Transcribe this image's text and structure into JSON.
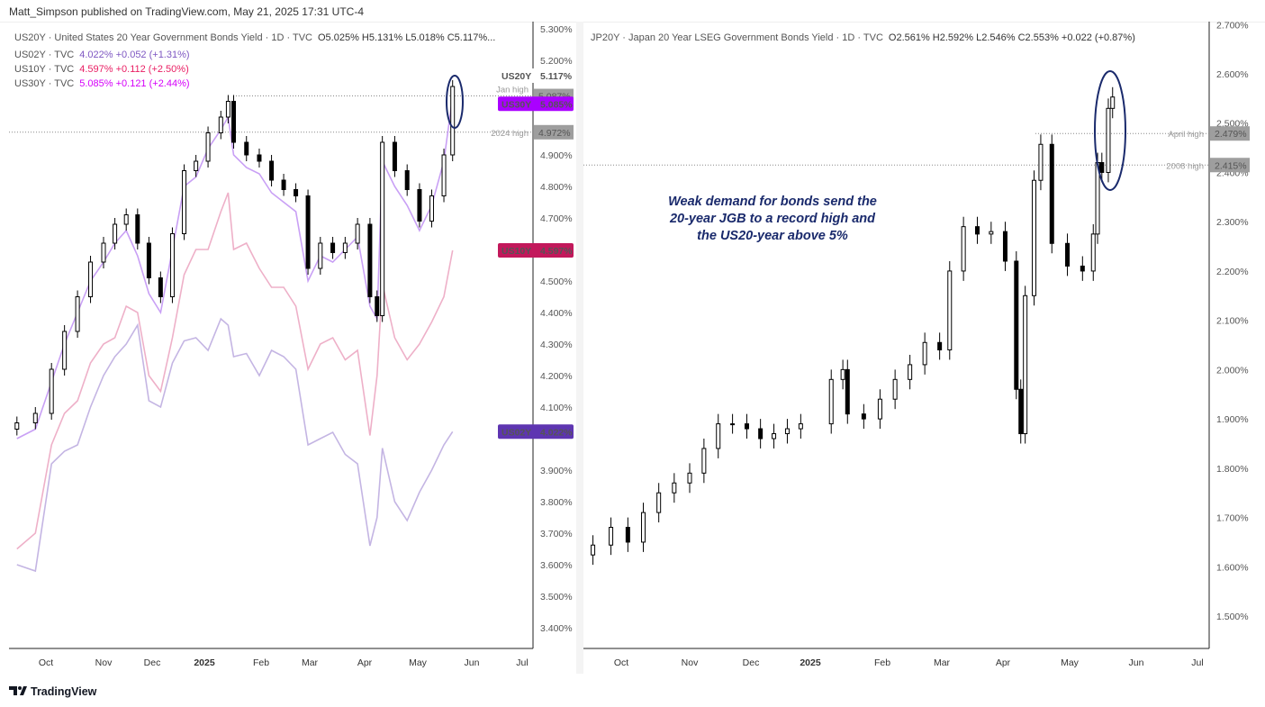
{
  "header": {
    "published": "Matt_Simpson published on TradingView.com, May 21, 2025 17:31 UTC-4"
  },
  "footer": {
    "logo_text": "TradingView"
  },
  "colors": {
    "us20y": "#000000",
    "us02y": "#5e35b1",
    "us10y": "#c2185b",
    "us30y": "#aa00ff",
    "annotation": "#1a2a6c"
  },
  "left_legend": {
    "main": "US20Y · United States 20 Year Government Bonds Yield · 1D · TVC",
    "ohlc": "O5.025%  H5.131%  L5.018%  C5.117%...",
    "rows": [
      {
        "label": "US02Y · TVC",
        "value": "4.022%  +0.052 (+1.31%)",
        "color": "#7e57c2"
      },
      {
        "label": "US10Y · TVC",
        "value": "4.597%  +0.112 (+2.50%)",
        "color": "#e91e63"
      },
      {
        "label": "US30Y · TVC",
        "value": "5.085%  +0.121 (+2.44%)",
        "color": "#d500f9"
      }
    ]
  },
  "right_legend": {
    "main": "JP20Y · Japan 20 Year LSEG Government Bonds Yield · 1D · TVC",
    "ohlc": "O2.561%  H2.592%  L2.546%  C2.553%  +0.022 (+0.87%)"
  },
  "annotation_text": [
    "Weak demand for bonds send the",
    "20-year JGB to a record high and",
    "the US20-year above 5%"
  ],
  "chart_data": [
    {
      "type": "candlestick+line",
      "title": "US20Y · United States 20 Year Government Bonds Yield · 1D · TVC",
      "ylim": [
        3.33,
        5.33
      ],
      "yticks": [
        "5.300%",
        "5.200%",
        "4.900%",
        "4.800%",
        "4.700%",
        "4.500%",
        "4.400%",
        "4.300%",
        "4.200%",
        "4.100%",
        "3.900%",
        "3.800%",
        "3.700%",
        "3.600%",
        "3.500%",
        "3.400%"
      ],
      "ytick_values": [
        5.3,
        5.2,
        4.9,
        4.8,
        4.7,
        4.5,
        4.4,
        4.3,
        4.2,
        4.1,
        3.9,
        3.8,
        3.7,
        3.6,
        3.5,
        3.4
      ],
      "xticks": [
        "Oct",
        "Nov",
        "Dec",
        "2025",
        "Feb",
        "Mar",
        "Apr",
        "May",
        "Jun",
        "Jul"
      ],
      "dates": [
        "2024-09-20",
        "2024-09-27",
        "2024-10-04",
        "2024-10-11",
        "2024-10-18",
        "2024-10-25",
        "2024-11-01",
        "2024-11-08",
        "2024-11-15",
        "2024-11-22",
        "2024-11-29",
        "2024-12-06",
        "2024-12-13",
        "2024-12-20",
        "2024-12-27",
        "2025-01-03",
        "2025-01-10",
        "2025-01-14",
        "2025-01-17",
        "2025-01-24",
        "2025-01-31",
        "2025-02-07",
        "2025-02-14",
        "2025-02-21",
        "2025-02-28",
        "2025-03-07",
        "2025-03-14",
        "2025-03-21",
        "2025-03-28",
        "2025-04-04",
        "2025-04-08",
        "2025-04-11",
        "2025-04-18",
        "2025-04-25",
        "2025-05-02",
        "2025-05-09",
        "2025-05-16",
        "2025-05-21"
      ],
      "series": [
        {
          "name": "US20Y",
          "style": "candles",
          "values": [
            4.05,
            4.08,
            4.22,
            4.34,
            4.45,
            4.56,
            4.62,
            4.68,
            4.71,
            4.62,
            4.51,
            4.45,
            4.65,
            4.85,
            4.88,
            4.97,
            5.02,
            5.07,
            4.94,
            4.9,
            4.88,
            4.82,
            4.79,
            4.77,
            4.54,
            4.62,
            4.59,
            4.62,
            4.68,
            4.45,
            4.39,
            4.94,
            4.85,
            4.79,
            4.69,
            4.77,
            4.9,
            5.117
          ]
        },
        {
          "name": "US30Y",
          "style": "line",
          "values": [
            4.0,
            4.03,
            4.18,
            4.3,
            4.4,
            4.5,
            4.56,
            4.62,
            4.66,
            4.58,
            4.46,
            4.4,
            4.6,
            4.8,
            4.83,
            4.92,
            4.98,
            5.02,
            4.9,
            4.86,
            4.84,
            4.78,
            4.75,
            4.72,
            4.5,
            4.58,
            4.56,
            4.6,
            4.64,
            4.42,
            4.38,
            4.88,
            4.8,
            4.74,
            4.66,
            4.74,
            4.88,
            5.085
          ]
        },
        {
          "name": "US10Y",
          "style": "line",
          "values": [
            3.65,
            3.7,
            3.98,
            4.08,
            4.12,
            4.24,
            4.3,
            4.32,
            4.42,
            4.4,
            4.2,
            4.15,
            4.32,
            4.52,
            4.6,
            4.6,
            4.72,
            4.78,
            4.6,
            4.62,
            4.54,
            4.48,
            4.48,
            4.42,
            4.22,
            4.3,
            4.32,
            4.25,
            4.28,
            4.01,
            4.2,
            4.49,
            4.32,
            4.25,
            4.3,
            4.37,
            4.45,
            4.597
          ]
        },
        {
          "name": "US02Y",
          "style": "line",
          "values": [
            3.6,
            3.58,
            3.92,
            3.96,
            3.98,
            4.1,
            4.2,
            4.26,
            4.3,
            4.36,
            4.12,
            4.1,
            4.24,
            4.31,
            4.32,
            4.28,
            4.38,
            4.36,
            4.26,
            4.27,
            4.2,
            4.28,
            4.26,
            4.22,
            3.98,
            4.0,
            4.02,
            3.95,
            3.92,
            3.66,
            3.75,
            3.97,
            3.8,
            3.74,
            3.83,
            3.9,
            3.98,
            4.022
          ]
        }
      ],
      "levels": [
        {
          "label": "Jan high",
          "value": 5.087
        },
        {
          "label": "2024 high",
          "value": 4.972
        }
      ],
      "price_labels": [
        {
          "name": "US20Y",
          "value": "5.117%"
        },
        {
          "name": "US30Y",
          "value": "5.085%"
        },
        {
          "name": "US10Y",
          "value": "4.597%"
        },
        {
          "name": "US02Y",
          "value": "4.022%"
        }
      ],
      "level_values": [
        "5.087%",
        "4.972%"
      ]
    },
    {
      "type": "candlestick",
      "title": "JP20Y · Japan 20 Year LSEG Government Bonds Yield · 1D · TVC",
      "ylim": [
        1.42,
        2.72
      ],
      "yticks": [
        "2.700%",
        "2.600%",
        "2.500%",
        "2.400%",
        "2.300%",
        "2.200%",
        "2.100%",
        "2.000%",
        "1.900%",
        "1.800%",
        "1.700%",
        "1.600%",
        "1.500%"
      ],
      "ytick_values": [
        2.7,
        2.6,
        2.5,
        2.4,
        2.3,
        2.2,
        2.1,
        2.0,
        1.9,
        1.8,
        1.7,
        1.6,
        1.5
      ],
      "xticks": [
        "Oct",
        "Nov",
        "Dec",
        "2025",
        "Feb",
        "Mar",
        "Apr",
        "May",
        "Jun",
        "Jul"
      ],
      "dates": [
        "2024-09-20",
        "2024-09-27",
        "2024-10-04",
        "2024-10-11",
        "2024-10-18",
        "2024-10-25",
        "2024-11-01",
        "2024-11-08",
        "2024-11-15",
        "2024-11-22",
        "2024-11-29",
        "2024-12-06",
        "2024-12-13",
        "2024-12-20",
        "2024-12-27",
        "2025-01-10",
        "2025-01-15",
        "2025-01-17",
        "2025-01-24",
        "2025-01-31",
        "2025-02-07",
        "2025-02-14",
        "2025-02-21",
        "2025-02-28",
        "2025-03-05",
        "2025-03-12",
        "2025-03-19",
        "2025-03-26",
        "2025-04-02",
        "2025-04-07",
        "2025-04-09",
        "2025-04-11",
        "2025-04-15",
        "2025-04-18",
        "2025-04-23",
        "2025-04-30",
        "2025-05-07",
        "2025-05-12",
        "2025-05-14",
        "2025-05-16",
        "2025-05-19",
        "2025-05-21"
      ],
      "series": [
        {
          "name": "JP20Y",
          "style": "candles",
          "values": [
            1.644,
            1.68,
            1.65,
            1.71,
            1.75,
            1.77,
            1.79,
            1.84,
            1.89,
            1.89,
            1.88,
            1.86,
            1.87,
            1.88,
            1.89,
            1.98,
            2.0,
            1.91,
            1.9,
            1.94,
            1.98,
            2.01,
            2.055,
            2.04,
            2.2,
            2.29,
            2.275,
            2.28,
            2.22,
            1.96,
            1.87,
            2.15,
            2.384,
            2.457,
            2.256,
            2.21,
            2.2,
            2.275,
            2.42,
            2.4,
            2.53,
            2.553
          ]
        }
      ],
      "levels": [
        {
          "label": "April high",
          "value": 2.479
        },
        {
          "label": "2008 high",
          "value": 2.415
        }
      ],
      "level_values": [
        "2.479%",
        "2.415%"
      ]
    }
  ]
}
